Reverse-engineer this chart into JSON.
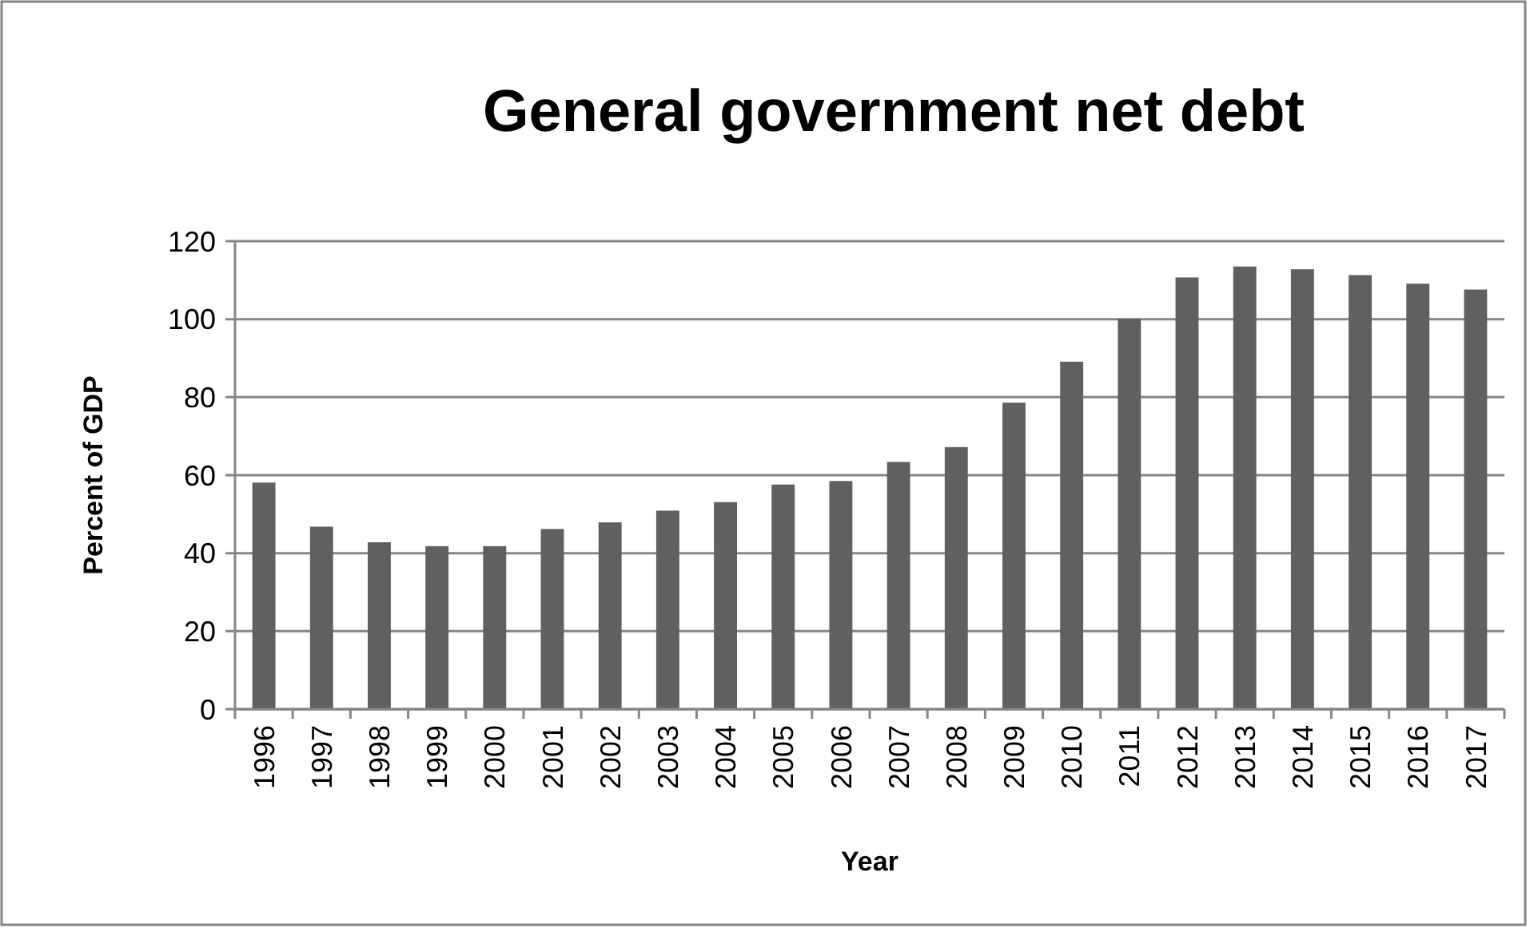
{
  "chart_data": {
    "type": "bar",
    "title": "General government net debt",
    "xlabel": "Year",
    "ylabel": "Percent of GDP",
    "categories": [
      "1996",
      "1997",
      "1998",
      "1999",
      "2000",
      "2001",
      "2002",
      "2003",
      "2004",
      "2005",
      "2006",
      "2007",
      "2008",
      "2009",
      "2010",
      "2011",
      "2012",
      "2013",
      "2014",
      "2015",
      "2016",
      "2017"
    ],
    "values": [
      58.1,
      46.8,
      42.8,
      41.8,
      41.8,
      46.2,
      47.9,
      50.9,
      53.1,
      57.6,
      58.5,
      63.4,
      67.2,
      78.6,
      89.1,
      100.1,
      110.7,
      113.5,
      112.8,
      111.3,
      109.1,
      107.6
    ],
    "color": "#606060",
    "ylim": [
      0,
      120
    ],
    "yticks": [
      0,
      20,
      40,
      60,
      80,
      100,
      120
    ],
    "grid": "y"
  }
}
